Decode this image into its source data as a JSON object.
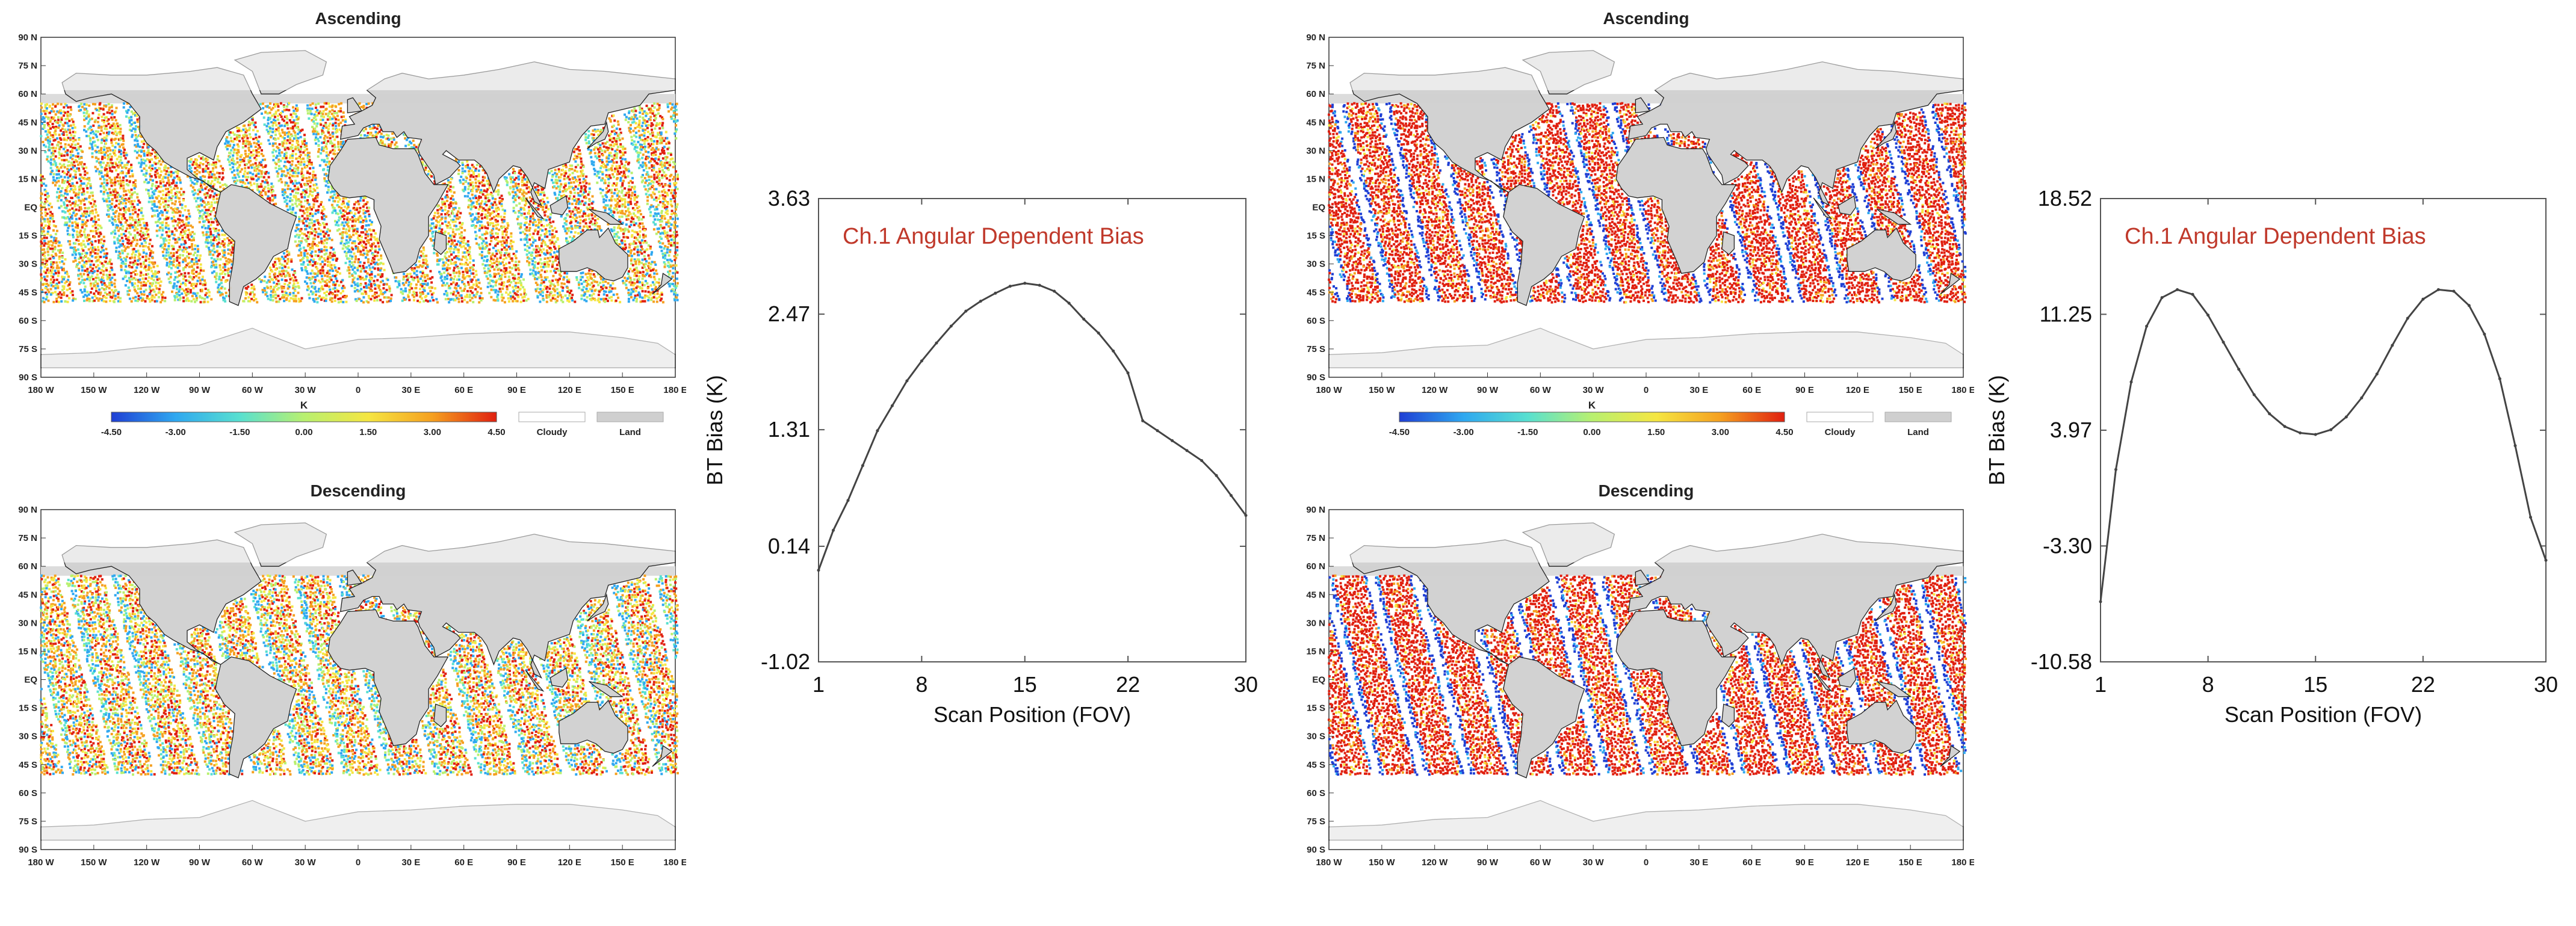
{
  "figure": {
    "maps": [
      {
        "id": "left-ascending",
        "title": "Ascending",
        "pattern": "mixed",
        "show_colorbar": true
      },
      {
        "id": "left-descending",
        "title": "Descending",
        "pattern": "mixed",
        "show_colorbar": false
      },
      {
        "id": "right-ascending",
        "title": "Ascending",
        "pattern": "red",
        "show_colorbar": true
      },
      {
        "id": "right-descending",
        "title": "Descending",
        "pattern": "red",
        "show_colorbar": false
      }
    ],
    "lat_labels": [
      "90 N",
      "75 N",
      "60 N",
      "45 N",
      "30 N",
      "15 N",
      "EQ",
      "15 S",
      "30 S",
      "45 S",
      "60 S",
      "75 S",
      "90 S"
    ],
    "lon_labels": [
      "180 W",
      "150 W",
      "120 W",
      "90 W",
      "60 W",
      "30 W",
      "0",
      "30 E",
      "60 E",
      "90 E",
      "120 E",
      "150 E",
      "180 E"
    ],
    "colorbar": {
      "unit": "K",
      "ticks": [
        "-4.50",
        "-3.00",
        "-1.50",
        "0.00",
        "1.50",
        "3.00",
        "4.50"
      ],
      "cloudy_label": "Cloudy",
      "land_label": "Land",
      "colors": [
        "#1f3fd4",
        "#2fa8f0",
        "#58e0d0",
        "#b8f070",
        "#f5e642",
        "#f5a020",
        "#e02010"
      ]
    }
  },
  "chart_data": [
    {
      "type": "line",
      "id": "left-bias",
      "title": "Ch.1 Angular Dependent Bias",
      "xlabel": "Scan Position (FOV)",
      "ylabel": "BT Bias (K)",
      "xlim": [
        1,
        30
      ],
      "ylim": [
        -1.02,
        3.63
      ],
      "xticks": [
        "1",
        "8",
        "15",
        "22",
        "30"
      ],
      "yticks": [
        "-1.02",
        "0.14",
        "1.31",
        "2.47",
        "3.63"
      ],
      "x": [
        1,
        2,
        3,
        4,
        5,
        6,
        7,
        8,
        9,
        10,
        11,
        12,
        13,
        14,
        15,
        16,
        17,
        18,
        19,
        20,
        21,
        22,
        23,
        24,
        25,
        26,
        27,
        28,
        29,
        30
      ],
      "y": [
        -0.1,
        0.3,
        0.6,
        0.95,
        1.3,
        1.55,
        1.8,
        2.0,
        2.18,
        2.35,
        2.5,
        2.6,
        2.68,
        2.75,
        2.78,
        2.76,
        2.7,
        2.58,
        2.42,
        2.28,
        2.1,
        1.88,
        1.4,
        1.3,
        1.2,
        1.1,
        1.0,
        0.85,
        0.65,
        0.45
      ],
      "line_color": "#444444"
    },
    {
      "type": "line",
      "id": "right-bias",
      "title": "Ch.1 Angular Dependent Bias",
      "xlabel": "Scan Position (FOV)",
      "ylabel": "BT Bias (K)",
      "xlim": [
        1,
        30
      ],
      "ylim": [
        -10.58,
        18.52
      ],
      "xticks": [
        "1",
        "8",
        "15",
        "22",
        "30"
      ],
      "yticks": [
        "-10.58",
        "-3.30",
        "3.97",
        "11.25",
        "18.52"
      ],
      "x": [
        1,
        2,
        3,
        4,
        5,
        6,
        7,
        8,
        9,
        10,
        11,
        12,
        13,
        14,
        15,
        16,
        17,
        18,
        19,
        20,
        21,
        22,
        23,
        24,
        25,
        26,
        27,
        28,
        29,
        30
      ],
      "y": [
        -6.8,
        1.5,
        7.0,
        10.5,
        12.3,
        12.8,
        12.5,
        11.2,
        9.5,
        7.8,
        6.2,
        5.0,
        4.2,
        3.8,
        3.7,
        4.0,
        4.8,
        6.0,
        7.5,
        9.3,
        11.0,
        12.2,
        12.8,
        12.7,
        11.8,
        10.0,
        7.2,
        3.0,
        -1.5,
        -4.2
      ],
      "line_color": "#444444"
    }
  ]
}
